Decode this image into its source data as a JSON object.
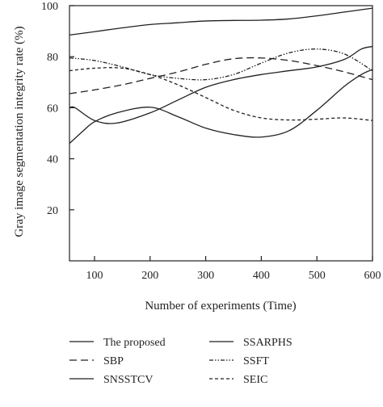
{
  "chart_data": {
    "type": "line",
    "xlabel": "Number of experiments (Time)",
    "ylabel": "Gray image segmentation integrity rate (%)",
    "xlim": [
      55,
      600
    ],
    "ylim": [
      0,
      100
    ],
    "xticks": [
      100,
      200,
      300,
      400,
      500,
      600
    ],
    "yticks": [
      20,
      40,
      60,
      80,
      100
    ],
    "grid": false,
    "legend_position": "bottom",
    "series": [
      {
        "name": "The proposed",
        "dash": "solid",
        "x": [
          55,
          100,
          150,
          200,
          250,
          300,
          350,
          400,
          450,
          500,
          550,
          600
        ],
        "y": [
          88.5,
          89.8,
          91.3,
          92.6,
          93.3,
          94,
          94.2,
          94.3,
          94.8,
          96,
          97.5,
          99
        ]
      },
      {
        "name": "SBP",
        "dash": "dashed",
        "x": [
          55,
          100,
          150,
          200,
          250,
          300,
          350,
          400,
          450,
          500,
          550,
          600
        ],
        "y": [
          65.5,
          67,
          69,
          71.5,
          74,
          77,
          79.2,
          79.5,
          78.5,
          76.5,
          74,
          71
        ]
      },
      {
        "name": "SNSSTCV",
        "dash": "solid",
        "x": [
          55,
          80,
          100,
          140,
          200,
          250,
          300,
          350,
          400,
          450,
          500,
          550,
          580,
          600
        ],
        "y": [
          46,
          51,
          54.5,
          58,
          60.2,
          56.5,
          52,
          49.5,
          48.5,
          51,
          59,
          68.5,
          73,
          75
        ]
      },
      {
        "name": "SSARPHS",
        "dash": "solid",
        "x": [
          55,
          65,
          100,
          140,
          200,
          250,
          300,
          350,
          400,
          450,
          500,
          550,
          580,
          600
        ],
        "y": [
          60,
          60,
          55,
          54,
          58,
          63,
          68,
          71,
          73,
          74.5,
          76,
          79,
          83,
          84
        ]
      },
      {
        "name": "SSFT",
        "dash": "dashdotdot",
        "x": [
          55,
          100,
          150,
          200,
          250,
          300,
          350,
          400,
          450,
          500,
          550,
          600
        ],
        "y": [
          79.5,
          78.5,
          76,
          73,
          71.5,
          71,
          73,
          77.5,
          81.5,
          83,
          81,
          74.5
        ]
      },
      {
        "name": "SEIC",
        "dash": "shortdash",
        "x": [
          55,
          100,
          150,
          200,
          250,
          300,
          350,
          400,
          450,
          500,
          550,
          600
        ],
        "y": [
          74.5,
          75.5,
          75.5,
          73,
          69,
          64,
          59,
          56,
          55.2,
          55.5,
          56,
          55
        ]
      }
    ]
  }
}
